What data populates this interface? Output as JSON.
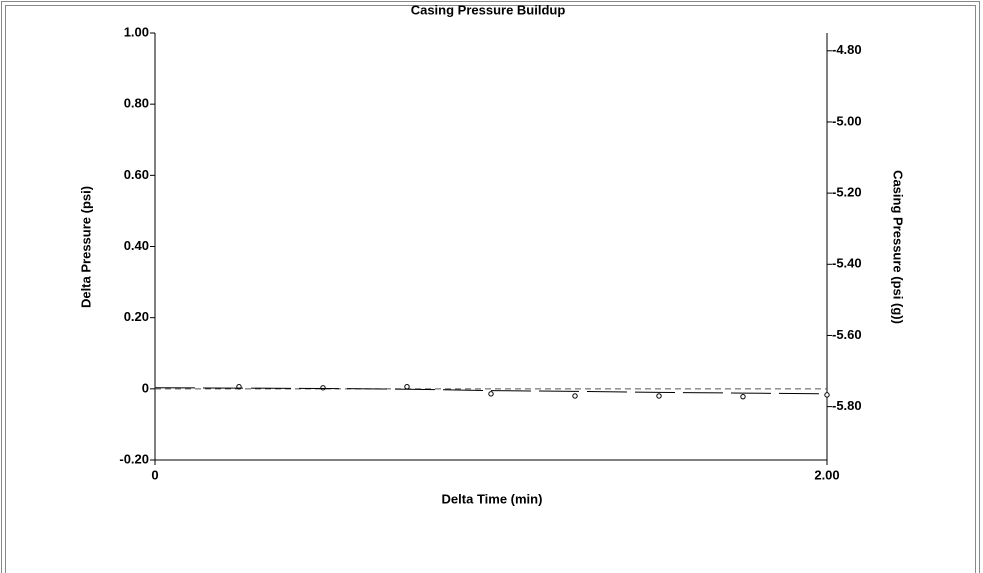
{
  "chart_data": {
    "type": "scatter",
    "title": "Casing Pressure Buildup",
    "x_label": "Delta Time (min)",
    "y_label": "Delta Pressure (psi)",
    "y2_label": "Casing Pressure (psi (g))",
    "xlim": [
      0,
      2
    ],
    "xticks": [
      0,
      {
        "value": 2,
        "label": "2.00"
      }
    ],
    "ylim": [
      -0.2,
      1.0
    ],
    "yticks": [
      {
        "value": 1,
        "label": "1.00"
      },
      {
        "value": 0.8,
        "label": "0.80"
      },
      {
        "value": 0.6,
        "label": "0.60"
      },
      {
        "value": 0.4,
        "label": "0.40"
      },
      {
        "value": 0.2,
        "label": "0.20"
      },
      0,
      {
        "value": -0.2,
        "label": "-0.20"
      }
    ],
    "y2lim": [
      -5.95,
      -4.75
    ],
    "y2ticks": [
      {
        "value": -4.8,
        "label": "-4.80"
      },
      {
        "value": -5.0,
        "label": "-5.00"
      },
      {
        "value": -5.2,
        "label": "-5.20"
      },
      {
        "value": -5.4,
        "label": "-5.40"
      },
      {
        "value": -5.6,
        "label": "-5.60"
      },
      {
        "value": -5.8,
        "label": "-5.80"
      }
    ],
    "series": [
      {
        "kind": "points",
        "color": "#000000",
        "x": [
          0.25,
          0.5,
          0.75,
          1.0,
          1.25,
          1.5,
          1.75,
          2.0
        ],
        "values": [
          0.006,
          0.003,
          0.006,
          -0.014,
          -0.02,
          -0.02,
          -0.022,
          -0.017
        ]
      },
      {
        "kind": "line",
        "axis": "y2",
        "color": "#000000",
        "x": [
          0,
          0.25,
          0.5,
          0.75,
          1.0,
          1.25,
          1.5,
          1.75,
          2.0
        ],
        "values": [
          -5.747,
          -5.748,
          -5.749,
          -5.751,
          -5.755,
          -5.757,
          -5.76,
          -5.762,
          -5.764
        ]
      }
    ]
  }
}
